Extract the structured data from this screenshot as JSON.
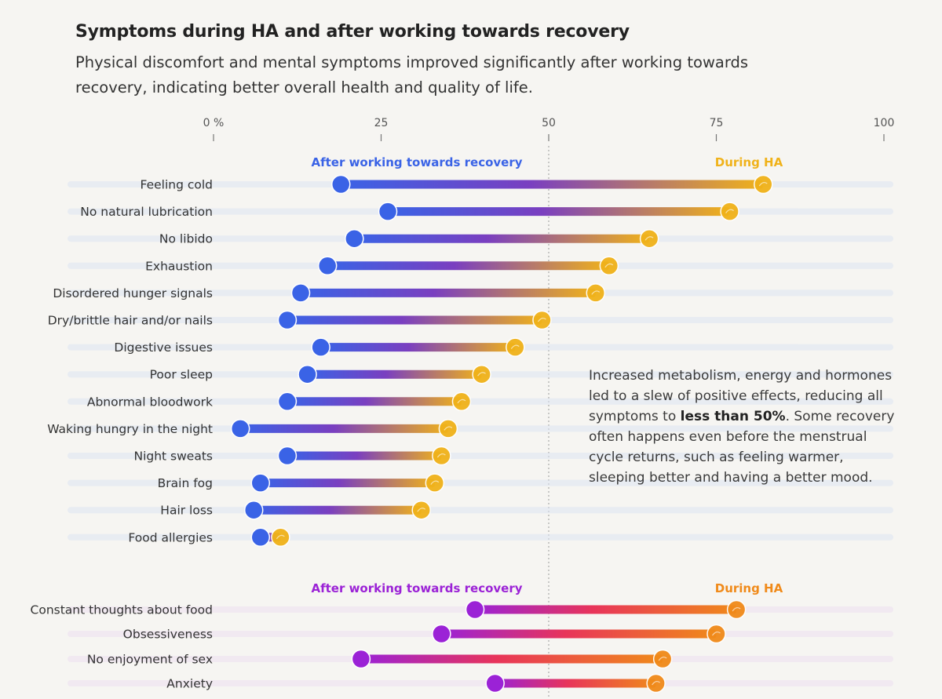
{
  "header": {
    "title": "Symptoms during HA and after working towards recovery",
    "subtitle": "Physical discomfort and mental symptoms improved significantly after working towards recovery, indicating better overall health and quality of life."
  },
  "annotation": {
    "text_before": "Increased metabolism, energy and hormones led to a slew of positive effects, reducing all symptoms to ",
    "text_bold": "less than 50%",
    "text_after": ". Some recovery often happens even before the menstrual cycle returns, such as feeling warmer, sleeping better and having a better mood."
  },
  "colors": {
    "physical_after": "#3a63e6",
    "physical_during": "#f0b21a",
    "physical_mid": "#7a3fc0",
    "mental_after": "#9b22d6",
    "mental_during": "#f08a1a",
    "mental_mid": "#e8345a",
    "track_physical": "#dde3f3",
    "track_mental": "#ecdff1"
  },
  "chart_data": [
    {
      "type": "dumbbell",
      "group": "physical",
      "axis": {
        "min": 0,
        "max": 100,
        "ticks": [
          0,
          25,
          50,
          75,
          100
        ],
        "tick_labels": [
          "0 %",
          "25",
          "50",
          "75",
          "100"
        ],
        "reference_line": 50
      },
      "legend": {
        "after_label": "After working towards recovery",
        "during_label": "During HA"
      },
      "categories": [
        "Feeling cold",
        "No natural lubrication",
        "No libido",
        "Exhaustion",
        "Disordered hunger signals",
        "Dry/brittle hair and/or nails",
        "Digestive issues",
        "Poor sleep",
        "Abnormal bloodwork",
        "Waking hungry in the night",
        "Night sweats",
        "Brain fog",
        "Hair loss",
        "Food allergies"
      ],
      "series": [
        {
          "name": "After working towards recovery",
          "values": [
            19,
            26,
            21,
            17,
            13,
            11,
            16,
            14,
            11,
            4,
            11,
            7,
            6,
            7
          ]
        },
        {
          "name": "During HA",
          "values": [
            82,
            77,
            65,
            59,
            57,
            49,
            45,
            40,
            37,
            35,
            34,
            33,
            31,
            10
          ]
        }
      ]
    },
    {
      "type": "dumbbell",
      "group": "mental",
      "legend": {
        "after_label": "After working towards recovery",
        "during_label": "During HA"
      },
      "categories": [
        "Constant thoughts about food",
        "Obsessiveness",
        "No enjoyment of sex",
        "Anxiety"
      ],
      "series": [
        {
          "name": "After working towards recovery",
          "values": [
            39,
            34,
            22,
            42
          ]
        },
        {
          "name": "During HA",
          "values": [
            78,
            75,
            67,
            66
          ]
        }
      ]
    }
  ]
}
